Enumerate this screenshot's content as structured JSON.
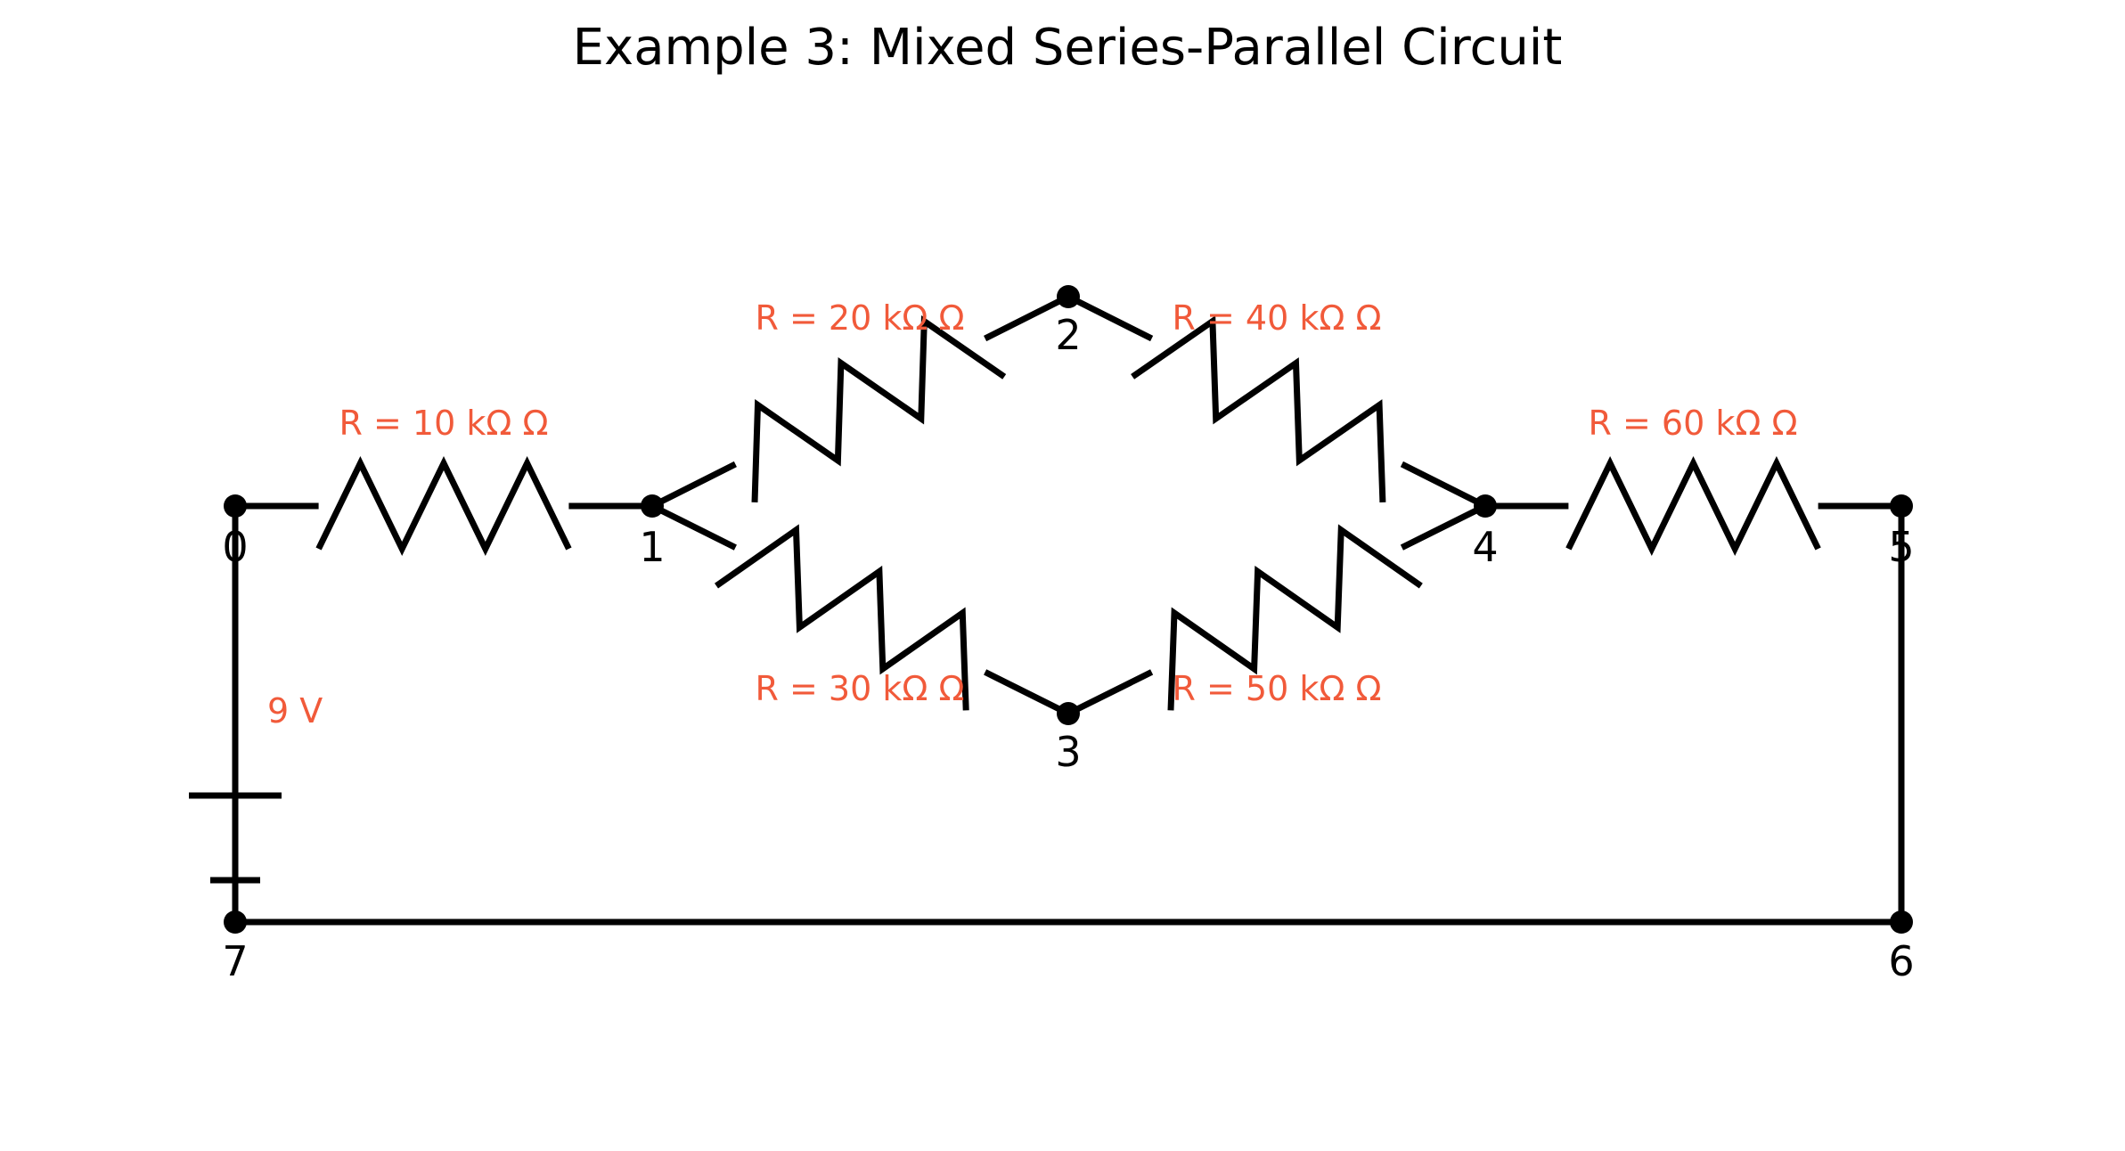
{
  "title": "Example 3: Mixed Series-Parallel Circuit",
  "colors": {
    "wire": "#000000",
    "label": "#f15a3a"
  },
  "nodes": [
    {
      "id": 0,
      "label": "0"
    },
    {
      "id": 1,
      "label": "1"
    },
    {
      "id": 2,
      "label": "2"
    },
    {
      "id": 3,
      "label": "3"
    },
    {
      "id": 4,
      "label": "4"
    },
    {
      "id": 5,
      "label": "5"
    },
    {
      "id": 6,
      "label": "6"
    },
    {
      "id": 7,
      "label": "7"
    }
  ],
  "components": [
    {
      "type": "resistor",
      "from": 0,
      "to": 1,
      "label": "R = 10 kΩ Ω"
    },
    {
      "type": "resistor",
      "from": 1,
      "to": 2,
      "label": "R = 20 kΩ Ω"
    },
    {
      "type": "resistor",
      "from": 1,
      "to": 3,
      "label": "R = 30 kΩ Ω"
    },
    {
      "type": "resistor",
      "from": 2,
      "to": 4,
      "label": "R = 40 kΩ Ω"
    },
    {
      "type": "resistor",
      "from": 3,
      "to": 4,
      "label": "R = 50 kΩ Ω"
    },
    {
      "type": "resistor",
      "from": 4,
      "to": 5,
      "label": "R = 60 kΩ Ω"
    },
    {
      "type": "wire",
      "from": 5,
      "to": 6
    },
    {
      "type": "wire",
      "from": 6,
      "to": 7
    },
    {
      "type": "battery",
      "from": 7,
      "to": 0,
      "label": "9 V"
    }
  ]
}
